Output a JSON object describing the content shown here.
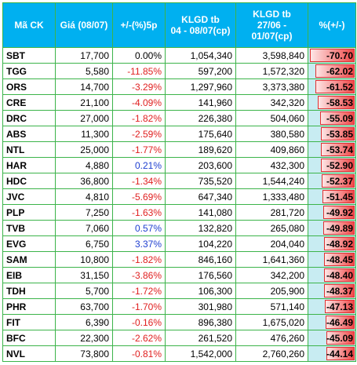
{
  "table": {
    "columns": [
      "Mã CK",
      "Giá (08/07)",
      "+/-(%)5p",
      "KLGD tb\n04 - 08/07(cp)",
      "KLGD tb\n27/06 -\n01/07(cp)",
      "%(+/-)"
    ],
    "rows": [
      [
        "SBT",
        "17,700",
        "0.00%",
        "1,054,340",
        "3,598,840",
        "-70.70"
      ],
      [
        "TGG",
        "5,580",
        "-11.85%",
        "597,200",
        "1,572,320",
        "-62.02"
      ],
      [
        "ORS",
        "14,700",
        "-3.29%",
        "1,297,960",
        "3,373,380",
        "-61.52"
      ],
      [
        "CRE",
        "21,100",
        "-4.09%",
        "141,960",
        "342,320",
        "-58.53"
      ],
      [
        "DRC",
        "27,000",
        "-1.82%",
        "226,380",
        "504,060",
        "-55.09"
      ],
      [
        "ABS",
        "11,300",
        "-2.59%",
        "175,640",
        "380,580",
        "-53.85"
      ],
      [
        "NTL",
        "25,000",
        "-1.77%",
        "189,620",
        "409,860",
        "-53.74"
      ],
      [
        "HAR",
        "4,880",
        "0.21%",
        "203,600",
        "432,300",
        "-52.90"
      ],
      [
        "HDC",
        "36,800",
        "-1.34%",
        "735,520",
        "1,544,240",
        "-52.37"
      ],
      [
        "JVC",
        "4,810",
        "-5.69%",
        "647,340",
        "1,333,480",
        "-51.45"
      ],
      [
        "PLP",
        "7,250",
        "-1.63%",
        "141,080",
        "281,720",
        "-49.92"
      ],
      [
        "TVB",
        "7,060",
        "0.57%",
        "132,820",
        "265,080",
        "-49.89"
      ],
      [
        "EVG",
        "6,750",
        "3.37%",
        "104,220",
        "204,040",
        "-48.92"
      ],
      [
        "SAM",
        "10,800",
        "-1.82%",
        "846,160",
        "1,641,360",
        "-48.45"
      ],
      [
        "EIB",
        "31,150",
        "-3.86%",
        "176,560",
        "342,200",
        "-48.40"
      ],
      [
        "TDH",
        "5,700",
        "-1.72%",
        "106,300",
        "205,900",
        "-48.37"
      ],
      [
        "PHR",
        "63,700",
        "-1.70%",
        "301,980",
        "571,140",
        "-47.13"
      ],
      [
        "FIT",
        "6,390",
        "-0.16%",
        "896,380",
        "1,675,020",
        "-46.49"
      ],
      [
        "BFC",
        "22,300",
        "-2.62%",
        "261,520",
        "476,260",
        "-45.09"
      ],
      [
        "NVL",
        "73,800",
        "-0.81%",
        "1,542,000",
        "2,760,260",
        "-44.14"
      ]
    ]
  }
}
